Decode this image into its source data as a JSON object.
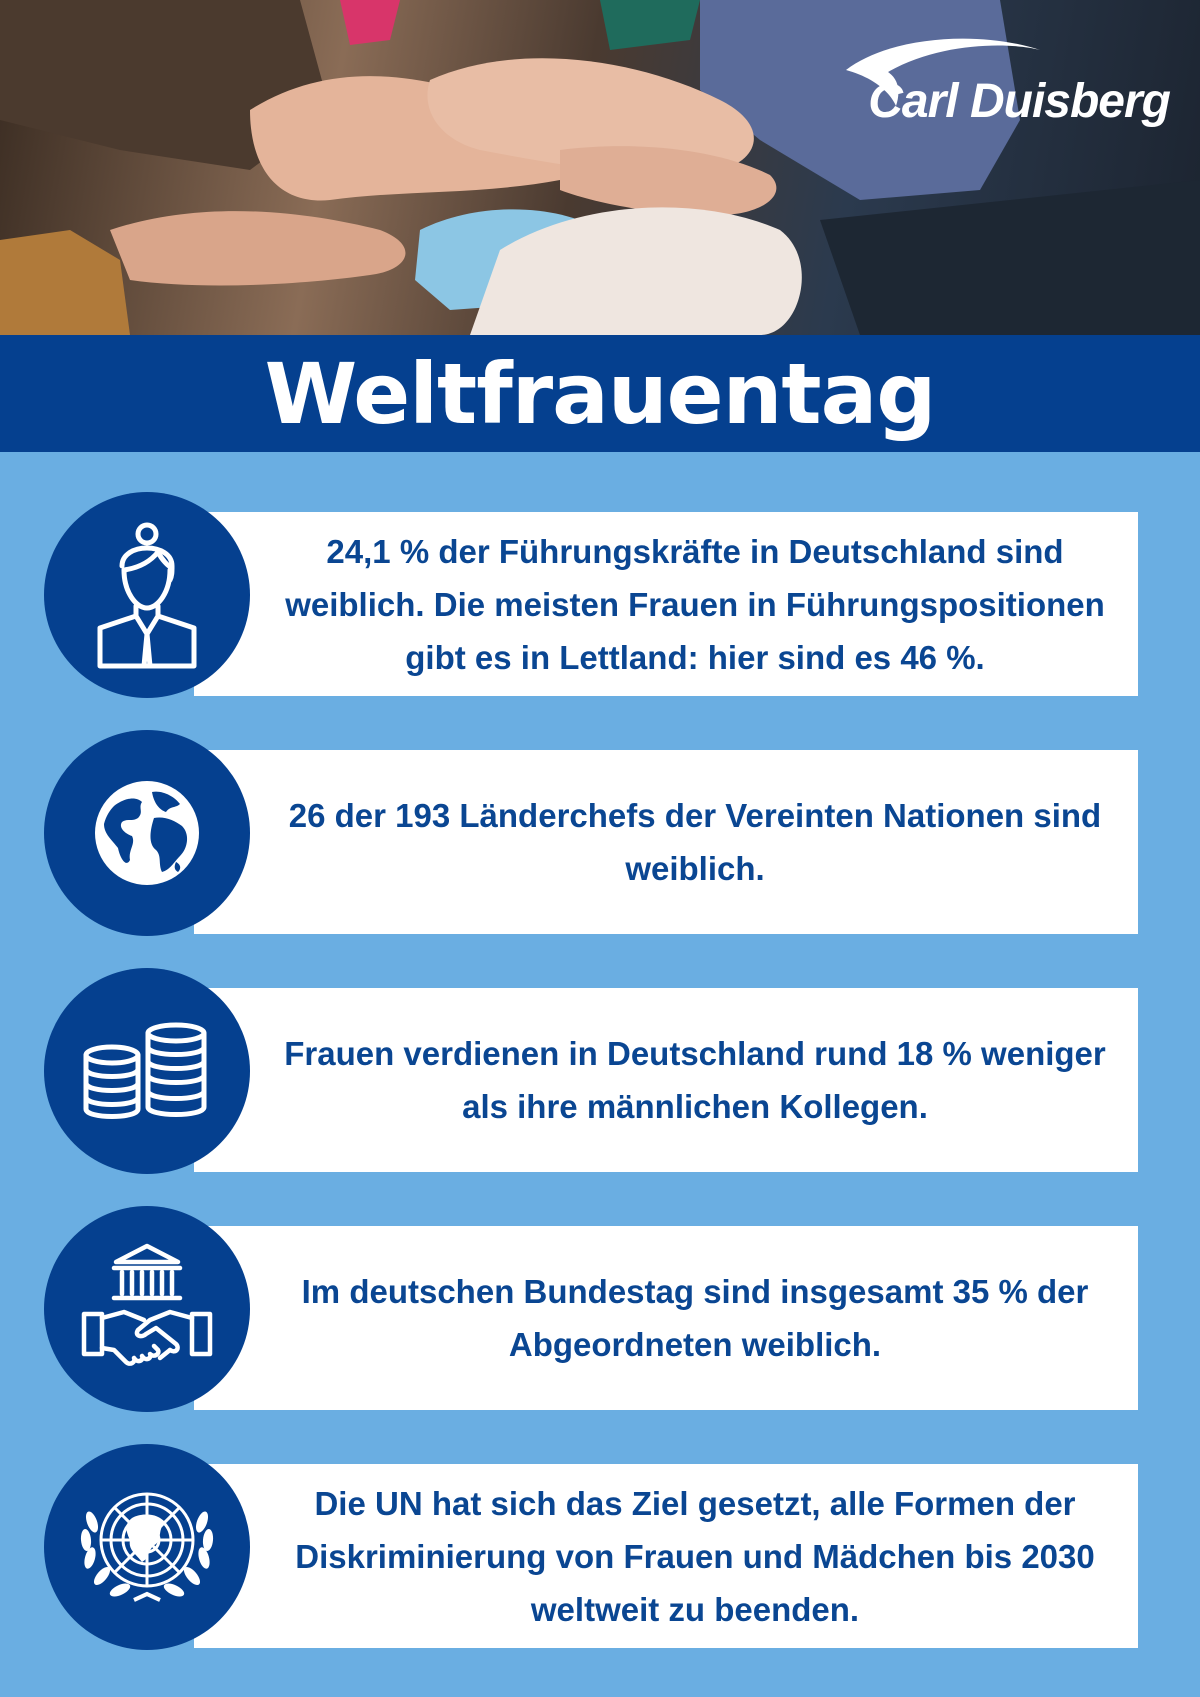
{
  "brand": {
    "logo_text": "Carl Duisberg",
    "colors": {
      "navy": "#05408f",
      "light_blue": "#6aaee2",
      "text": "#0a4692"
    }
  },
  "header": {
    "title": "Weltfrauentag"
  },
  "facts": [
    {
      "icon": "businesswoman-icon",
      "text": "24,1 % der Führungskräfte in Deutschland sind weiblich. Die meisten Frauen in Führungspositionen gibt es in Lettland: hier sind es 46 %."
    },
    {
      "icon": "globe-icon",
      "text": "26 der 193 Länderchefs der Vereinten Nationen sind weiblich."
    },
    {
      "icon": "coins-icon",
      "text": "Frauen verdienen in Deutschland rund 18 % weniger als ihre männlichen Kollegen."
    },
    {
      "icon": "parliament-handshake-icon",
      "text": "Im deutschen Bundestag sind insgesamt 35 % der Abgeordneten weiblich."
    },
    {
      "icon": "un-emblem-icon",
      "text": "Die UN hat sich das Ziel gesetzt, alle Formen der Diskriminierung von Frauen und Mädchen bis 2030 weltweit zu beenden."
    }
  ]
}
